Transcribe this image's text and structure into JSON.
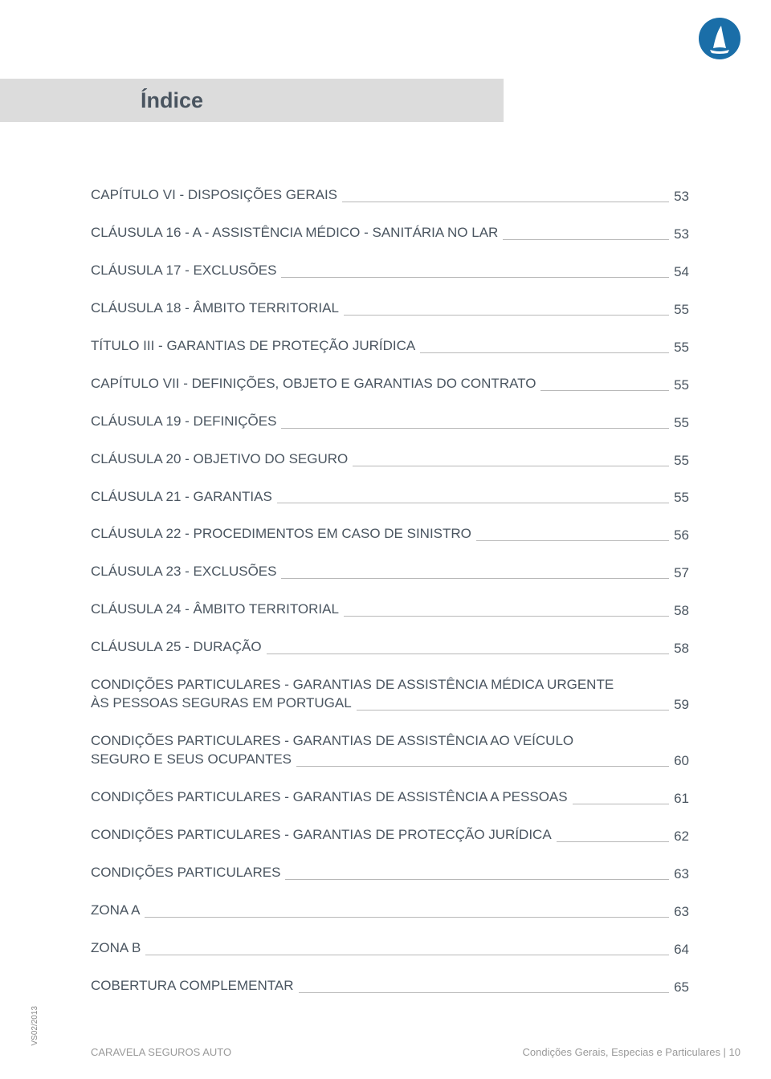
{
  "logo": {
    "bg_color": "#1a6ea8",
    "shape_color": "#ffffff"
  },
  "header": {
    "title": "Índice",
    "bar_color": "#dcdcdc"
  },
  "toc_text_color": "#4a5560",
  "leader_color": "#b8b8b8",
  "entries": [
    {
      "label": "CAPÍTULO VI - DISPOSIÇÕES GERAIS",
      "page": "53",
      "multiline": false
    },
    {
      "label": "CLÁUSULA 16 - A - ASSISTÊNCIA MÉDICO  - SANITÁRIA NO LAR",
      "page": "53",
      "multiline": false
    },
    {
      "label": "CLÁUSULA 17 - EXCLUSÕES",
      "page": "54",
      "multiline": false
    },
    {
      "label": "CLÁUSULA 18 - ÂMBITO TERRITORIAL",
      "page": "55",
      "multiline": false
    },
    {
      "label": "TÍTULO III - GARANTIAS DE PROTEÇÃO JURÍDICA",
      "page": "55",
      "multiline": false
    },
    {
      "label": "CAPÍTULO VII - DEFINIÇÕES, OBJETO E GARANTIAS DO CONTRATO",
      "page": "55",
      "multiline": false
    },
    {
      "label": "CLÁUSULA 19 - DEFINIÇÕES",
      "page": "55",
      "multiline": false
    },
    {
      "label": "CLÁUSULA 20 - OBJETIVO DO SEGURO",
      "page": "55",
      "multiline": false
    },
    {
      "label": "CLÁUSULA 21 - GARANTIAS",
      "page": "55",
      "multiline": false
    },
    {
      "label": "CLÁUSULA 22 - PROCEDIMENTOS EM CASO DE SINISTRO",
      "page": "56",
      "multiline": false
    },
    {
      "label": "CLÁUSULA 23 -  EXCLUSÕES",
      "page": "57",
      "multiline": false
    },
    {
      "label": "CLÁUSULA 24 - ÂMBITO TERRITORIAL",
      "page": "58",
      "multiline": false
    },
    {
      "label": "CLÁUSULA 25 - DURAÇÃO",
      "page": "58",
      "multiline": false
    },
    {
      "line1": "CONDIÇÕES PARTICULARES - GARANTIAS DE ASSISTÊNCIA MÉDICA URGENTE",
      "label": "ÀS PESSOAS SEGURAS EM PORTUGAL",
      "page": "59",
      "multiline": true
    },
    {
      "line1": "CONDIÇÕES PARTICULARES - GARANTIAS DE ASSISTÊNCIA AO VEÍCULO",
      "label": "SEGURO E SEUS OCUPANTES",
      "page": "60",
      "multiline": true
    },
    {
      "label": "CONDIÇÕES PARTICULARES - GARANTIAS DE ASSISTÊNCIA A PESSOAS",
      "page": "61",
      "multiline": false
    },
    {
      "label": "CONDIÇÕES PARTICULARES - GARANTIAS DE PROTECÇÃO JURÍDICA",
      "page": "62",
      "multiline": false
    },
    {
      "label": "CONDIÇÕES PARTICULARES",
      "page": "63",
      "multiline": false
    },
    {
      "label": "ZONA A",
      "page": "63",
      "multiline": false
    },
    {
      "label": "ZONA B",
      "page": "64",
      "multiline": false
    },
    {
      "label": "COBERTURA COMPLEMENTAR",
      "page": "65",
      "multiline": false
    }
  ],
  "footer": {
    "left": "CARAVELA SEGUROS AUTO",
    "right": "Condições Gerais, Especias e Particulares | 10"
  },
  "version": "VS02/2013"
}
